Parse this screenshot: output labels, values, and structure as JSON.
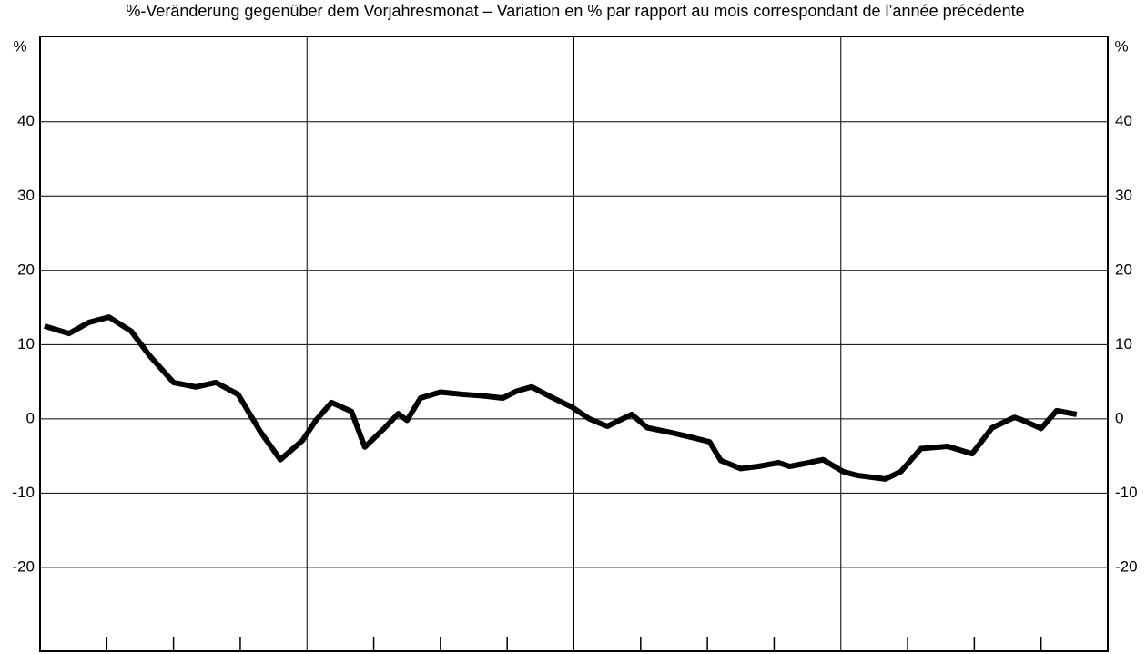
{
  "chart_data": {
    "type": "line",
    "title": "%-Veränderung gegenüber dem Vorjahresmonat – Variation en % par rapport au mois correspondant de l’année précédente",
    "y_unit": "%",
    "x": [
      0.2,
      1.3,
      2.2,
      3.1,
      4.1,
      4.9,
      6.0,
      7.0,
      7.9,
      8.9,
      9.9,
      10.8,
      11.8,
      12.4,
      13.1,
      14.0,
      14.6,
      15.5,
      16.1,
      16.5,
      17.1,
      18.0,
      19.0,
      19.9,
      20.8,
      21.4,
      22.1,
      23.0,
      23.9,
      24.7,
      25.5,
      26.6,
      27.3,
      28.3,
      29.3,
      30.1,
      30.6,
      31.5,
      32.3,
      33.2,
      33.7,
      34.4,
      35.2,
      36.1,
      36.7,
      38.0,
      38.7,
      39.6,
      40.8,
      41.9,
      42.8,
      43.8,
      44.1,
      45.0,
      45.7,
      46.6
    ],
    "series": [
      {
        "color": "#000000",
        "values": [
          12.5,
          11.5,
          13,
          13.7,
          11.8,
          8.6,
          4.9,
          4.3,
          4.9,
          3.3,
          -1.7,
          -5.5,
          -2.9,
          -0.2,
          2.2,
          1,
          -3.8,
          -1.2,
          0.7,
          -0.2,
          2.8,
          3.6,
          3.3,
          3.1,
          2.8,
          3.7,
          4.3,
          2.9,
          1.6,
          0,
          -1,
          0.6,
          -1.2,
          -1.8,
          -2.5,
          -3.1,
          -5.6,
          -6.7,
          -6.4,
          -5.9,
          -6.4,
          -6,
          -5.5,
          -7.1,
          -7.6,
          -8.1,
          -7.1,
          -4.0,
          -3.7,
          -4.7,
          -1.2,
          0.2,
          -0.1,
          -1.3,
          1.1,
          0.6
        ]
      }
    ],
    "xlim": [
      0,
      48
    ],
    "xticks": [
      3,
      6,
      9,
      15,
      18,
      21,
      27,
      30,
      33,
      39,
      42,
      45
    ],
    "xgrid": [
      12,
      24,
      36
    ],
    "ylim": [
      -31.3,
      51.5
    ],
    "yticks": [
      -20,
      -10,
      0,
      10,
      20,
      30,
      40
    ],
    "grid": true
  }
}
